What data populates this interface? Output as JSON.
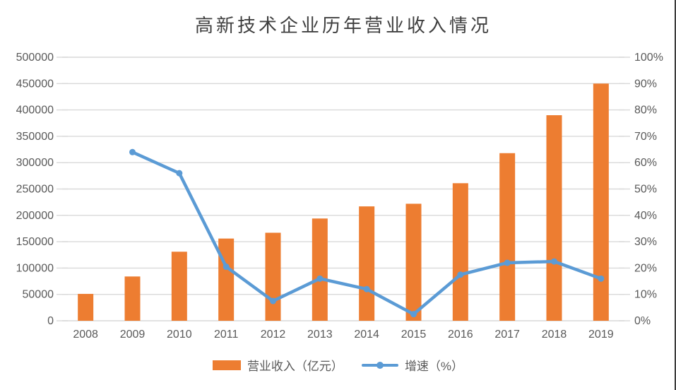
{
  "title": "高新技术企业历年营业收入情况",
  "colors": {
    "bar": "#ED7D31",
    "line": "#5B9BD5",
    "grid": "#D9D9D9",
    "axis_text": "#595959",
    "title_text": "#3f3f3f",
    "edge_border": "#3c3c3c"
  },
  "legend": {
    "bar_label": "营业收入（亿元）",
    "line_label": "增速（%）"
  },
  "chart_data": {
    "type": "bar+line combo",
    "title": "高新技术企业历年营业收入情况",
    "categories": [
      "2008",
      "2009",
      "2010",
      "2011",
      "2012",
      "2013",
      "2014",
      "2015",
      "2016",
      "2017",
      "2018",
      "2019"
    ],
    "series": [
      {
        "name": "营业收入（亿元）",
        "type": "bar",
        "axis": "left",
        "color": "#ED7D31",
        "values": [
          51000,
          84000,
          131000,
          156000,
          167000,
          194000,
          217000,
          222000,
          261000,
          318000,
          390000,
          450000
        ]
      },
      {
        "name": "增速（%）",
        "type": "line",
        "axis": "right",
        "color": "#5B9BD5",
        "values": [
          null,
          64,
          56,
          20.5,
          7.5,
          16,
          12,
          2.5,
          17.5,
          22,
          22.5,
          16
        ]
      }
    ],
    "left_axis": {
      "min": 0,
      "max": 500000,
      "step": 50000,
      "tick_labels": [
        "0",
        "50000",
        "100000",
        "150000",
        "200000",
        "250000",
        "300000",
        "350000",
        "400000",
        "450000",
        "500000"
      ]
    },
    "right_axis": {
      "min": 0,
      "max": 100,
      "step": 10,
      "tick_labels": [
        "0%",
        "10%",
        "20%",
        "30%",
        "40%",
        "50%",
        "60%",
        "70%",
        "80%",
        "90%",
        "100%"
      ]
    },
    "grid": true,
    "legend_position": "bottom"
  }
}
